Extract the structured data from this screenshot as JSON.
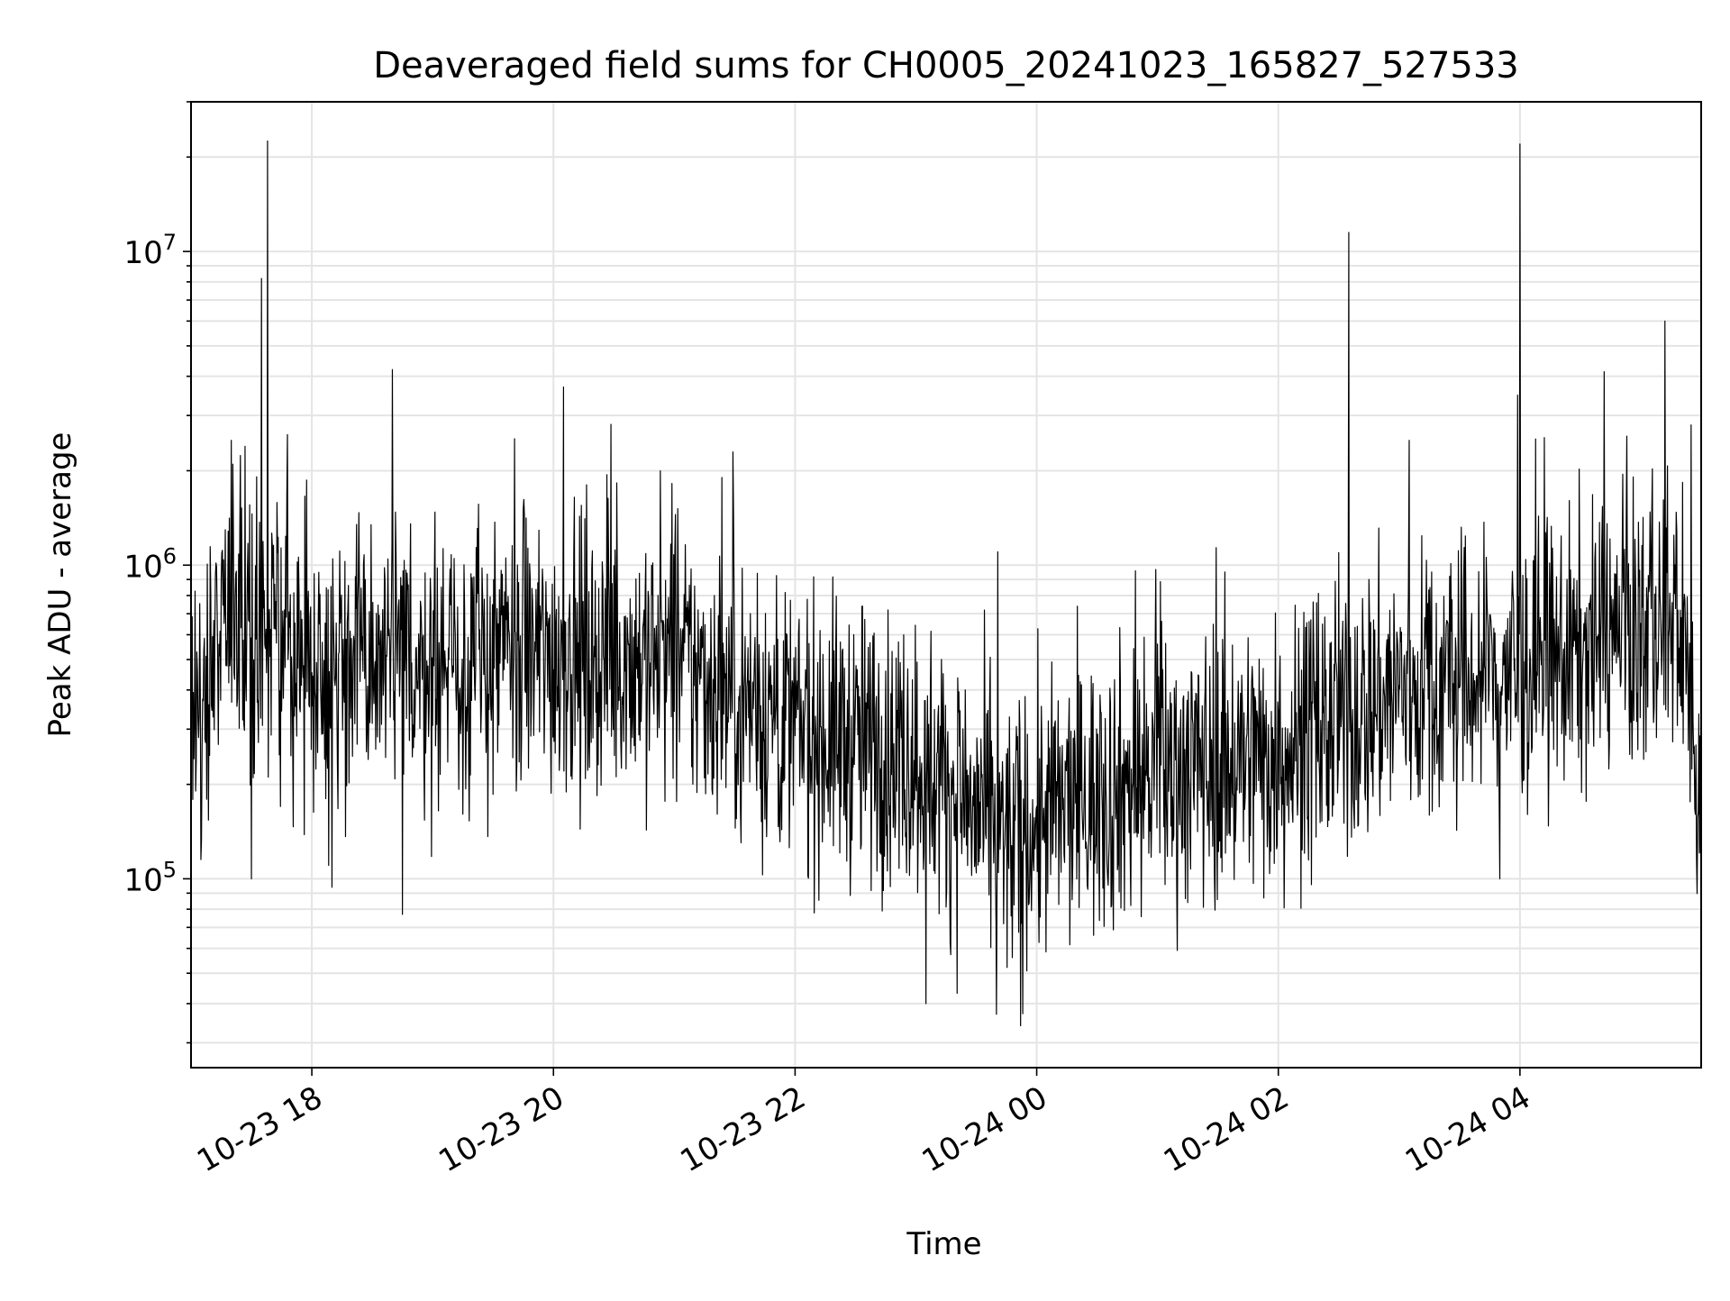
{
  "chart_data": {
    "type": "line",
    "title": "Deaveraged field sums for CH0005_20241023_165827_527533",
    "xlabel": "Time",
    "ylabel": "Peak ADU - average",
    "x_axis": {
      "kind": "time",
      "start": "2024-10-23T17:00",
      "end": "2024-10-24T05:30",
      "ticks": [
        {
          "value": "2024-10-23T18:00",
          "label": "10-23 18"
        },
        {
          "value": "2024-10-23T20:00",
          "label": "10-23 20"
        },
        {
          "value": "2024-10-23T22:00",
          "label": "10-23 22"
        },
        {
          "value": "2024-10-24T00:00",
          "label": "10-24 00"
        },
        {
          "value": "2024-10-24T02:00",
          "label": "10-24 02"
        },
        {
          "value": "2024-10-24T04:00",
          "label": "10-24 04"
        }
      ]
    },
    "y_axis": {
      "scale": "log",
      "ylim": [
        25000,
        30000000
      ],
      "ticks": [
        {
          "value": 100000,
          "base": "10",
          "exp": "5"
        },
        {
          "value": 1000000,
          "base": "10",
          "exp": "6"
        },
        {
          "value": 10000000,
          "base": "10",
          "exp": "7"
        }
      ]
    },
    "grid": true,
    "line_color": "#000000",
    "series": [
      {
        "x_start": "2024-10-23T17:00",
        "x_end": "2024-10-24T05:30",
        "level_hint": [
          [
            "2024-10-23T17:00",
            250000
          ],
          [
            "2024-10-23T17:15",
            700000
          ],
          [
            "2024-10-23T18:00",
            500000
          ],
          [
            "2024-10-23T19:00",
            480000
          ],
          [
            "2024-10-23T20:00",
            520000
          ],
          [
            "2024-10-23T21:00",
            500000
          ],
          [
            "2024-10-23T22:00",
            300000
          ],
          [
            "2024-10-23T23:00",
            250000
          ],
          [
            "2024-10-23T23:45",
            130000
          ],
          [
            "2024-10-24T00:15",
            170000
          ],
          [
            "2024-10-24T01:00",
            220000
          ],
          [
            "2024-10-24T02:00",
            250000
          ],
          [
            "2024-10-24T03:00",
            400000
          ],
          [
            "2024-10-24T04:00",
            450000
          ],
          [
            "2024-10-24T05:00",
            620000
          ],
          [
            "2024-10-24T05:20",
            700000
          ],
          [
            "2024-10-24T05:30",
            150000
          ]
        ],
        "peaks": [
          [
            "2024-10-23T17:38",
            22500000
          ],
          [
            "2024-10-23T17:35",
            8200000
          ],
          [
            "2024-10-23T18:40",
            4200000
          ],
          [
            "2024-10-23T20:05",
            3700000
          ],
          [
            "2024-10-24T02:35",
            11500000
          ],
          [
            "2024-10-24T04:00",
            22000000
          ],
          [
            "2024-10-24T05:12",
            6000000
          ],
          [
            "2024-10-23T17:20",
            2500000
          ],
          [
            "2024-10-24T03:05",
            2500000
          ],
          [
            "2024-10-24T05:25",
            2800000
          ]
        ],
        "dips": [
          [
            "2024-10-23T17:30",
            100000
          ],
          [
            "2024-10-23T18:10",
            94000
          ],
          [
            "2024-10-23T18:45",
            77000
          ],
          [
            "2024-10-23T23:05",
            40000
          ],
          [
            "2024-10-23T23:52",
            34000
          ],
          [
            "2024-10-23T23:40",
            37000
          ],
          [
            "2024-10-24T03:50",
            100000
          ],
          [
            "2024-10-24T05:30",
            110000
          ]
        ]
      }
    ]
  }
}
